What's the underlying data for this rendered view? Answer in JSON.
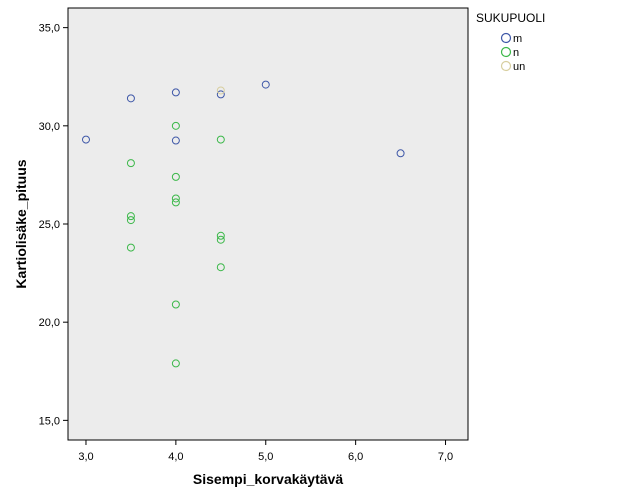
{
  "chart_data": {
    "type": "scatter",
    "xlabel": "Sisempi_korvakäytävä",
    "ylabel": "Kartiolisäke_pituus",
    "xlim": [
      2.8,
      7.25
    ],
    "ylim": [
      14.0,
      36.0
    ],
    "x_ticks": [
      3.0,
      4.0,
      5.0,
      6.0,
      7.0
    ],
    "x_tick_labels": [
      "3,0",
      "4,0",
      "5,0",
      "6,0",
      "7,0"
    ],
    "y_ticks": [
      15.0,
      20.0,
      25.0,
      30.0,
      35.0
    ],
    "y_tick_labels": [
      "15,0",
      "20,0",
      "25,0",
      "30,0",
      "35,0"
    ],
    "grid": false,
    "background": "#ececec",
    "legend": {
      "title": "SUKUPUOLI",
      "position": "right"
    },
    "series": [
      {
        "name": "m",
        "color": "#3f58a8",
        "points": [
          {
            "x": 3.0,
            "y": 29.3
          },
          {
            "x": 3.5,
            "y": 31.4
          },
          {
            "x": 4.0,
            "y": 31.7
          },
          {
            "x": 4.0,
            "y": 29.25
          },
          {
            "x": 4.5,
            "y": 31.6
          },
          {
            "x": 5.0,
            "y": 32.1
          },
          {
            "x": 6.5,
            "y": 28.6
          }
        ]
      },
      {
        "name": "n",
        "color": "#3cb84a",
        "points": [
          {
            "x": 3.5,
            "y": 28.1
          },
          {
            "x": 3.5,
            "y": 25.4
          },
          {
            "x": 3.5,
            "y": 25.2
          },
          {
            "x": 3.5,
            "y": 23.8
          },
          {
            "x": 4.0,
            "y": 30.0
          },
          {
            "x": 4.0,
            "y": 27.4
          },
          {
            "x": 4.0,
            "y": 26.3
          },
          {
            "x": 4.0,
            "y": 26.1
          },
          {
            "x": 4.0,
            "y": 20.9
          },
          {
            "x": 4.0,
            "y": 17.9
          },
          {
            "x": 4.5,
            "y": 29.3
          },
          {
            "x": 4.5,
            "y": 24.4
          },
          {
            "x": 4.5,
            "y": 24.2
          },
          {
            "x": 4.5,
            "y": 22.8
          }
        ]
      },
      {
        "name": "un",
        "color": "#d8cfa0",
        "points": [
          {
            "x": 4.5,
            "y": 31.8
          }
        ]
      }
    ]
  }
}
